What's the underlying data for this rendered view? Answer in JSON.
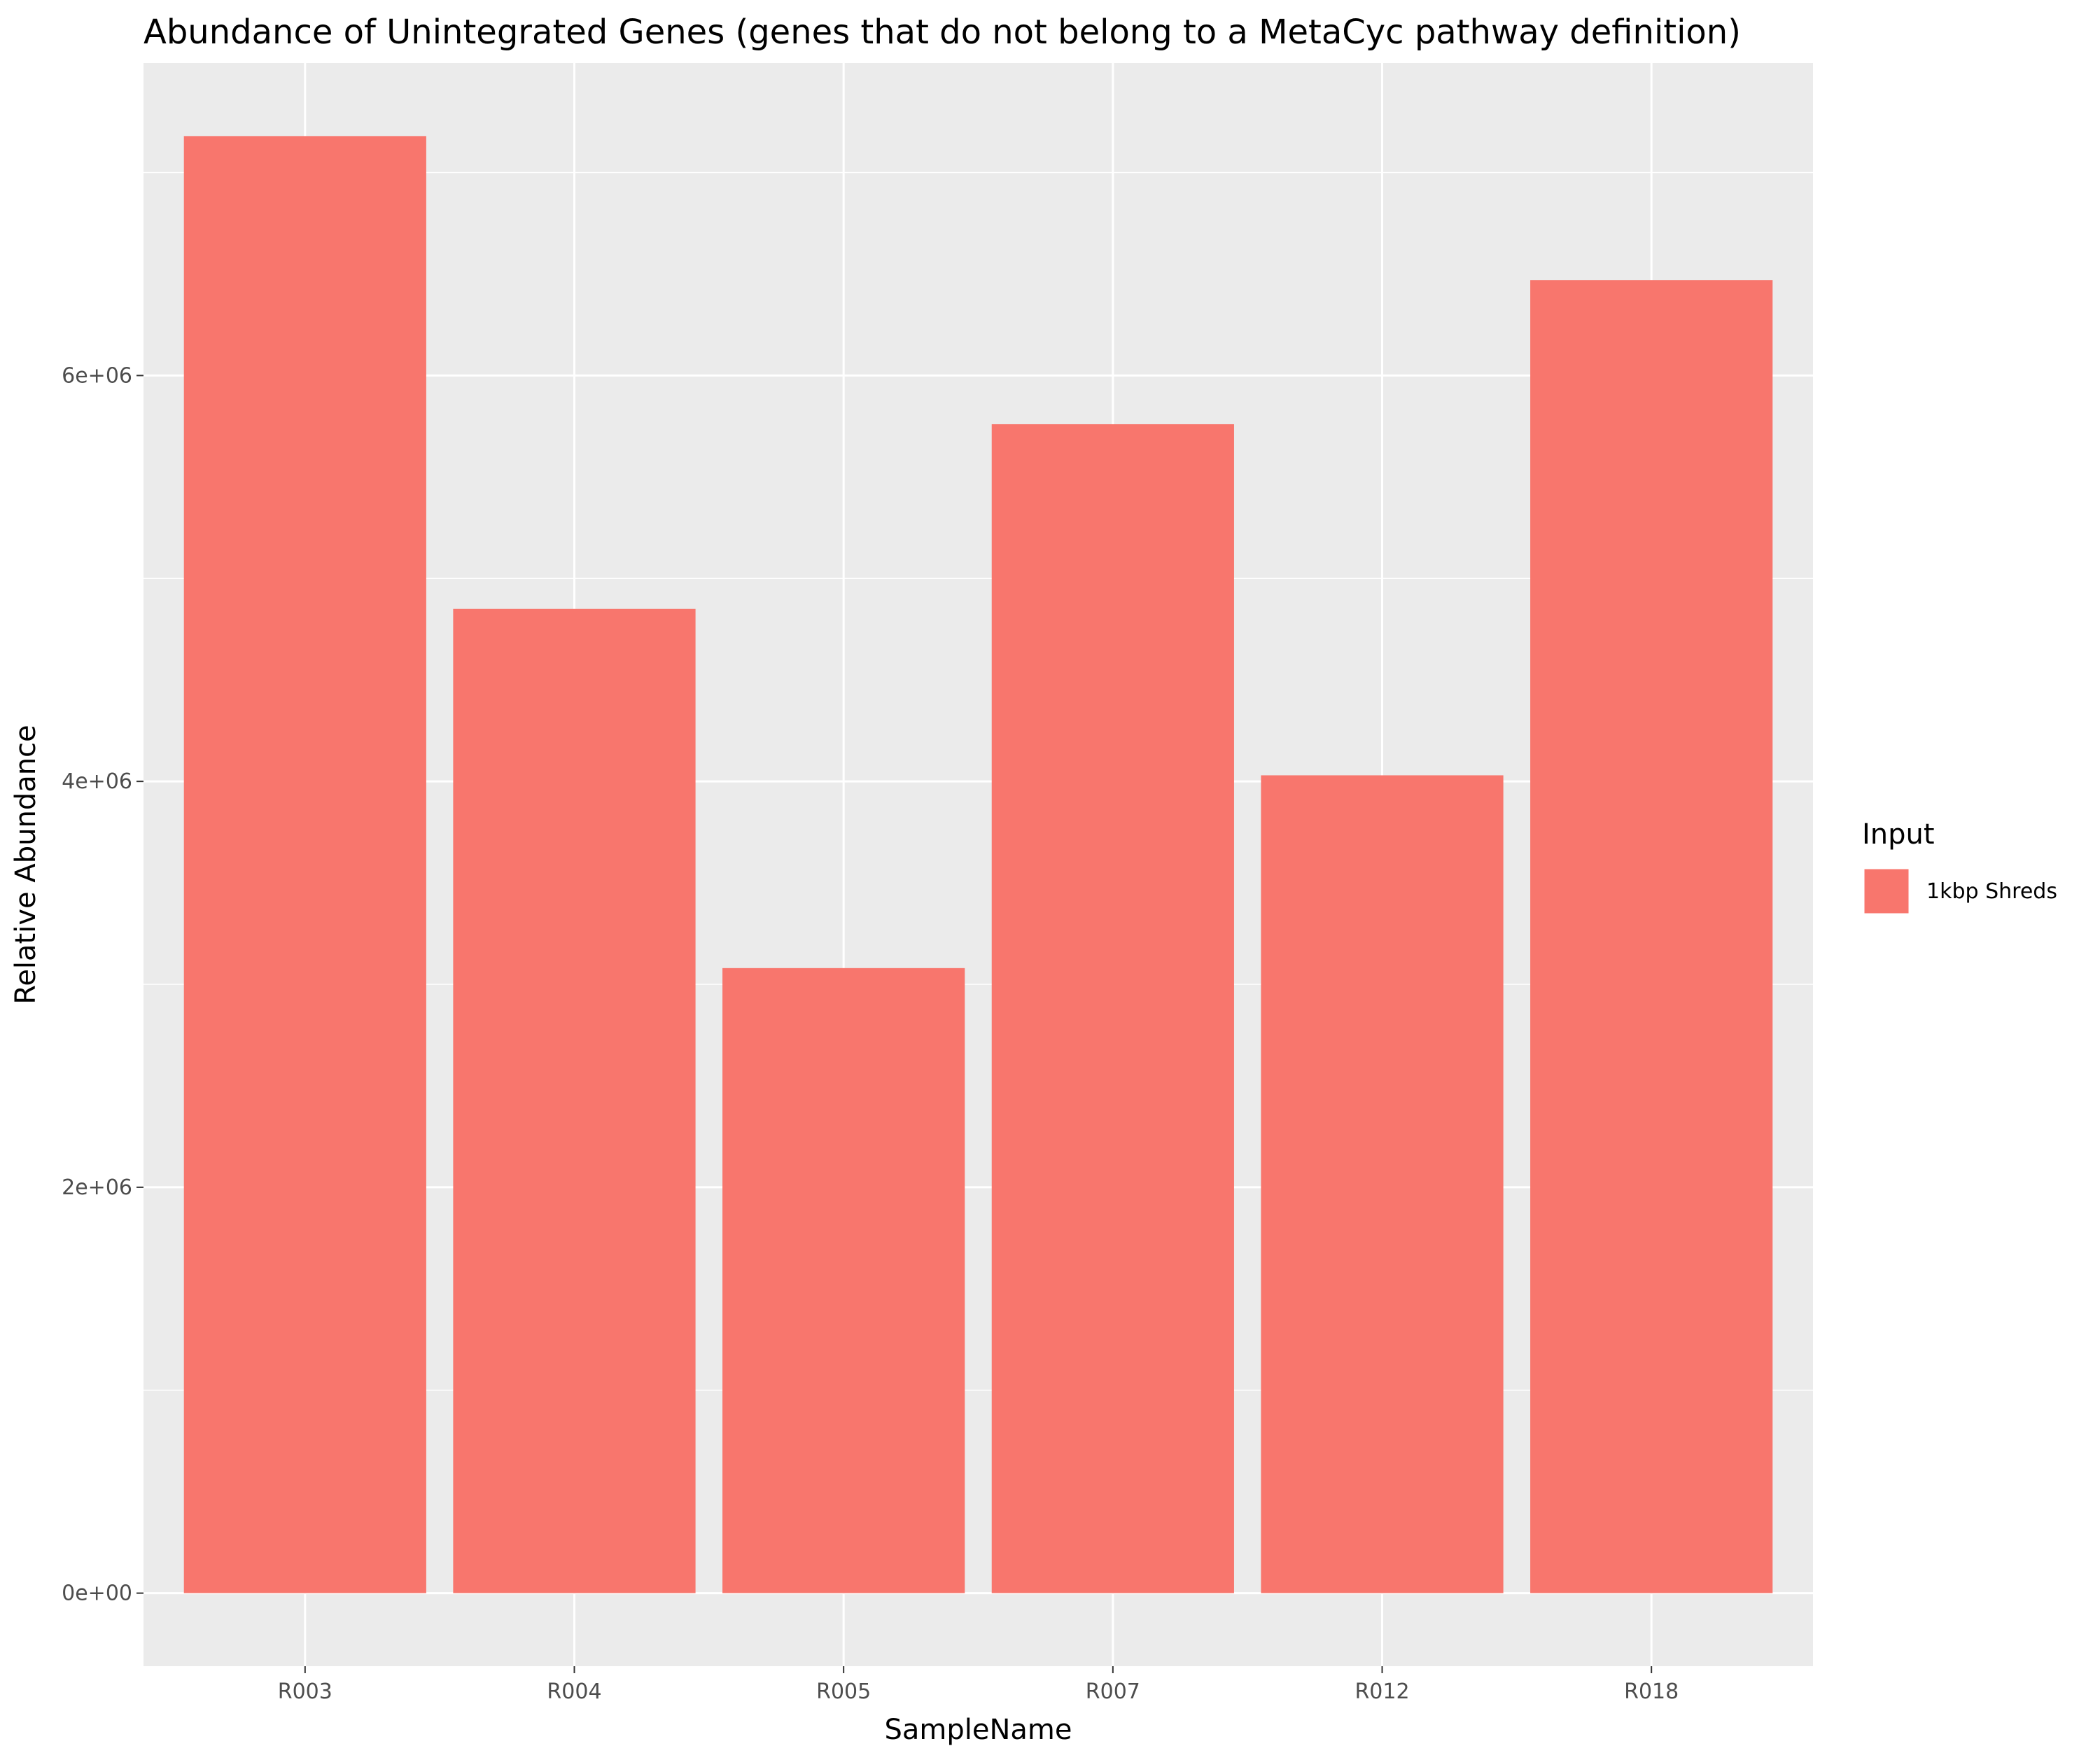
{
  "chart_data": {
    "type": "bar",
    "title": "Abundance of Unintegrated Genes (genes that do not belong to a MetaCyc pathway definition)",
    "xlabel": "SampleName",
    "ylabel": "Relative Abundance",
    "categories": [
      "R003",
      "R004",
      "R005",
      "R007",
      "R012",
      "R018"
    ],
    "series": [
      {
        "name": "1kbp Shreds",
        "values": [
          7180000,
          4850000,
          3080000,
          5760000,
          4030000,
          6470000
        ],
        "color": "#F8766D"
      }
    ],
    "ylim": [
      -360000,
      7540000
    ],
    "yticks": [
      0,
      2000000,
      4000000,
      6000000
    ],
    "ytick_labels": [
      "0e+00",
      "2e+06",
      "4e+06",
      "6e+06"
    ],
    "grid": true,
    "legend": {
      "title": "Input",
      "position": "right"
    },
    "panel_background": "#EBEBEB",
    "grid_color": "#FFFFFF"
  }
}
